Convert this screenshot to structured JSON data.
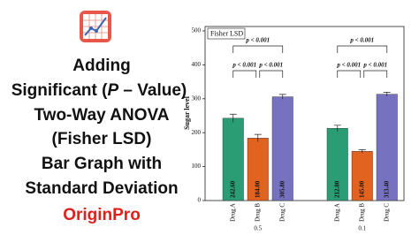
{
  "headline": {
    "lines": [
      "Adding",
      [
        "Significant (",
        "P",
        " – Value)"
      ],
      "Two-Way ANOVA",
      "(Fisher LSD)",
      "Bar Graph with",
      "Standard Deviation"
    ],
    "brand": "OriginPro"
  },
  "chart_data": {
    "type": "bar",
    "legend_title": "Fisher LSD",
    "y_label": "Sugar level",
    "categories": [
      "0.5",
      "0.1"
    ],
    "series": [
      {
        "name": "Drug A",
        "color": "#2a9d74",
        "values": [
          242.6,
          212.8
        ],
        "errors": [
          12,
          9
        ],
        "value_labels": [
          "242.60",
          "212.80"
        ]
      },
      {
        "name": "Drug B",
        "color": "#e2621f",
        "values": [
          184.0,
          145.0
        ],
        "errors": [
          11,
          5
        ],
        "value_labels": [
          "184.00",
          "145.00"
        ]
      },
      {
        "name": "Drug C",
        "color": "#7672bf",
        "values": [
          305.8,
          313.4
        ],
        "errors": [
          7,
          6
        ],
        "value_labels": [
          "305.80",
          "313.40"
        ]
      }
    ],
    "annotations": [
      "p < 0.001",
      "p < 0.001",
      "p < 0.001",
      "p < 0.001",
      "p < 0.001",
      "p < 0.001"
    ],
    "ylim": [
      0,
      500
    ],
    "yticks": [
      0,
      100,
      200,
      300,
      400,
      500
    ]
  }
}
